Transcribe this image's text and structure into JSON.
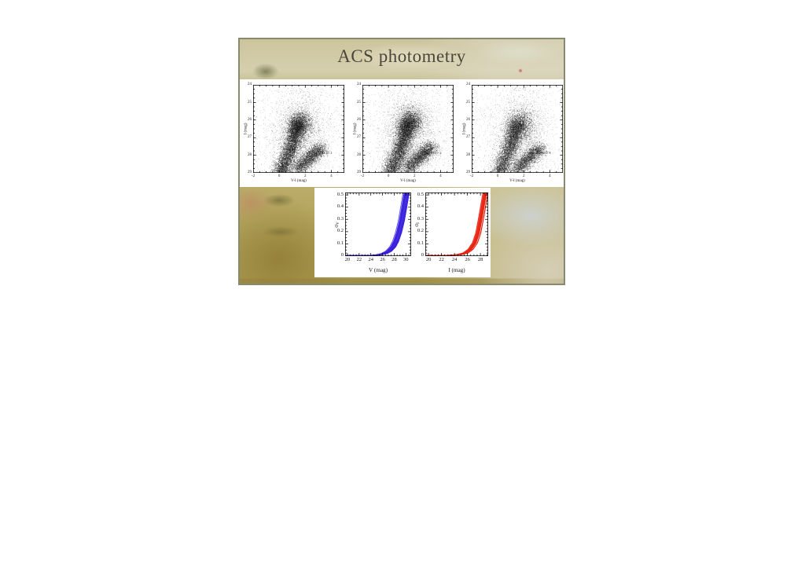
{
  "slide": {
    "title": "ACS photometry",
    "title_color": "#4a463c",
    "border_color": "#878a6e",
    "point_color": "#141414",
    "accent_blue": "#3a22dd",
    "accent_red": "#e82413"
  },
  "chart_data": [
    {
      "type": "scatter",
      "label": "HALO 1",
      "label_pos": [
        3.0,
        27.95
      ],
      "xlabel": "V-I (mag)",
      "ylabel": "I (mag)",
      "xlim": [
        -2,
        5
      ],
      "ylim": [
        24,
        29
      ],
      "y_inverted": true,
      "xticks": [
        -2,
        0,
        2,
        4
      ],
      "yticks": [
        24,
        25,
        26,
        27,
        28,
        29
      ],
      "x_minor_step": 0.5,
      "y_minor_step": 0.25,
      "point_color": "#141414",
      "seed": 11,
      "components": [
        {
          "name": "giant-branch-ridge",
          "kind": "ridge",
          "path": [
            [
              0.05,
              29.1
            ],
            [
              0.3,
              28.6
            ],
            [
              0.65,
              28.05
            ],
            [
              0.95,
              27.5
            ],
            [
              1.15,
              27.0
            ],
            [
              1.3,
              26.5
            ],
            [
              1.45,
              26.1
            ]
          ],
          "sigma": 0.33,
          "count": 5200,
          "alpha": 0.5
        },
        {
          "name": "bright-clump",
          "kind": "blob",
          "center": [
            1.62,
            26.2
          ],
          "sigma": [
            0.48,
            0.38
          ],
          "count": 1800,
          "alpha": 0.45
        },
        {
          "name": "faint-red-sequence",
          "kind": "ridge",
          "path": [
            [
              1.35,
              28.85
            ],
            [
              2.0,
              28.35
            ],
            [
              2.6,
              27.95
            ],
            [
              3.25,
              27.55
            ]
          ],
          "sigma": 0.3,
          "count": 2700,
          "alpha": 0.45
        },
        {
          "name": "diffuse-halo",
          "kind": "blob",
          "center": [
            1.5,
            26.9
          ],
          "sigma": [
            1.15,
            1.35
          ],
          "count": 2600,
          "alpha": 0.28
        },
        {
          "name": "field-speckle",
          "kind": "uniform",
          "count": 450,
          "alpha": 0.3
        }
      ]
    },
    {
      "type": "scatter",
      "label": "HALO 2",
      "label_pos": [
        3.0,
        27.95
      ],
      "xlabel": "V-I (mag)",
      "ylabel": "I (mag)",
      "xlim": [
        -2,
        5
      ],
      "ylim": [
        24,
        29
      ],
      "y_inverted": true,
      "xticks": [
        -2,
        0,
        2,
        4
      ],
      "yticks": [
        24,
        25,
        26,
        27,
        28,
        29
      ],
      "x_minor_step": 0.5,
      "y_minor_step": 0.25,
      "point_color": "#141414",
      "seed": 22,
      "components": [
        {
          "name": "giant-branch-ridge",
          "kind": "ridge",
          "path": [
            [
              0.05,
              29.1
            ],
            [
              0.32,
              28.6
            ],
            [
              0.68,
              28.05
            ],
            [
              0.98,
              27.5
            ],
            [
              1.18,
              27.0
            ],
            [
              1.32,
              26.5
            ],
            [
              1.5,
              26.1
            ]
          ],
          "sigma": 0.34,
          "count": 5300,
          "alpha": 0.5
        },
        {
          "name": "bright-clump",
          "kind": "blob",
          "center": [
            1.7,
            26.1
          ],
          "sigma": [
            0.5,
            0.4
          ],
          "count": 2100,
          "alpha": 0.45
        },
        {
          "name": "faint-red-sequence",
          "kind": "ridge",
          "path": [
            [
              1.4,
              28.8
            ],
            [
              2.05,
              28.3
            ],
            [
              2.7,
              27.9
            ],
            [
              3.3,
              27.5
            ]
          ],
          "sigma": 0.3,
          "count": 2900,
          "alpha": 0.45
        },
        {
          "name": "diffuse-halo",
          "kind": "blob",
          "center": [
            1.55,
            26.8
          ],
          "sigma": [
            1.15,
            1.35
          ],
          "count": 2700,
          "alpha": 0.28
        },
        {
          "name": "field-speckle",
          "kind": "uniform",
          "count": 450,
          "alpha": 0.3
        }
      ]
    },
    {
      "type": "scatter",
      "label": "HALO 3",
      "label_pos": [
        3.0,
        27.95
      ],
      "xlabel": "V-I (mag)",
      "ylabel": "I (mag)",
      "xlim": [
        -2,
        5
      ],
      "ylim": [
        24,
        29
      ],
      "y_inverted": true,
      "xticks": [
        -2,
        0,
        2,
        4
      ],
      "yticks": [
        24,
        25,
        26,
        27,
        28,
        29
      ],
      "x_minor_step": 0.5,
      "y_minor_step": 0.25,
      "point_color": "#141414",
      "seed": 33,
      "components": [
        {
          "name": "giant-branch-ridge",
          "kind": "ridge",
          "path": [
            [
              0.05,
              29.1
            ],
            [
              0.32,
              28.6
            ],
            [
              0.66,
              28.05
            ],
            [
              0.96,
              27.5
            ],
            [
              1.18,
              27.0
            ],
            [
              1.35,
              26.5
            ],
            [
              1.5,
              26.15
            ]
          ],
          "sigma": 0.34,
          "count": 4800,
          "alpha": 0.48
        },
        {
          "name": "bright-clump",
          "kind": "blob",
          "center": [
            1.75,
            26.25
          ],
          "sigma": [
            0.55,
            0.45
          ],
          "count": 1600,
          "alpha": 0.42
        },
        {
          "name": "faint-red-sequence",
          "kind": "ridge",
          "path": [
            [
              1.4,
              28.85
            ],
            [
              2.05,
              28.35
            ],
            [
              2.65,
              27.95
            ],
            [
              3.3,
              27.55
            ]
          ],
          "sigma": 0.3,
          "count": 2500,
          "alpha": 0.45
        },
        {
          "name": "diffuse-halo",
          "kind": "blob",
          "center": [
            1.6,
            26.9
          ],
          "sigma": [
            1.2,
            1.35
          ],
          "count": 2400,
          "alpha": 0.25
        },
        {
          "name": "field-speckle",
          "kind": "uniform",
          "count": 420,
          "alpha": 0.28
        }
      ]
    },
    {
      "type": "line-bundle",
      "xlabel": "V (mag)",
      "ylabel_sigma": "σ",
      "ylabel_sub": "V",
      "xlim": [
        19.6,
        30.9
      ],
      "ylim": [
        0,
        0.52
      ],
      "y_inverted": false,
      "xticks": [
        20,
        22,
        24,
        26,
        28,
        30
      ],
      "yticks": [
        0,
        0.1,
        0.2,
        0.3,
        0.4,
        0.5
      ],
      "x_minor_step": 0.5,
      "y_minor_step": 0.025,
      "color": "#3a22dd",
      "seed": 71,
      "curve": [
        [
          19.6,
          0.004
        ],
        [
          23,
          0.005
        ],
        [
          24,
          0.006
        ],
        [
          25,
          0.01
        ],
        [
          26,
          0.02
        ],
        [
          26.8,
          0.04
        ],
        [
          27.5,
          0.075
        ],
        [
          28,
          0.12
        ],
        [
          28.5,
          0.19
        ],
        [
          29,
          0.29
        ],
        [
          29.4,
          0.4
        ],
        [
          29.75,
          0.5
        ]
      ],
      "bundle": {
        "count": 26,
        "x_spread": 1.1,
        "line_width": 0.9
      }
    },
    {
      "type": "line-bundle",
      "xlabel": "I (mag)",
      "ylabel_sigma": "σ",
      "ylabel_sub": "I",
      "xlim": [
        19.5,
        29.2
      ],
      "ylim": [
        0,
        0.52
      ],
      "y_inverted": false,
      "xticks": [
        20,
        22,
        24,
        26,
        28
      ],
      "yticks": [
        0,
        0.1,
        0.2,
        0.3,
        0.4,
        0.5
      ],
      "x_minor_step": 0.5,
      "y_minor_step": 0.025,
      "color": "#e82413",
      "seed": 72,
      "curve": [
        [
          19.5,
          0.004
        ],
        [
          23,
          0.006
        ],
        [
          24.5,
          0.012
        ],
        [
          25.5,
          0.025
        ],
        [
          26.3,
          0.055
        ],
        [
          27,
          0.11
        ],
        [
          27.5,
          0.19
        ],
        [
          28,
          0.33
        ],
        [
          28.35,
          0.44
        ],
        [
          28.55,
          0.5
        ]
      ],
      "bundle": {
        "count": 22,
        "x_spread": 0.85,
        "line_width": 0.9
      }
    }
  ]
}
